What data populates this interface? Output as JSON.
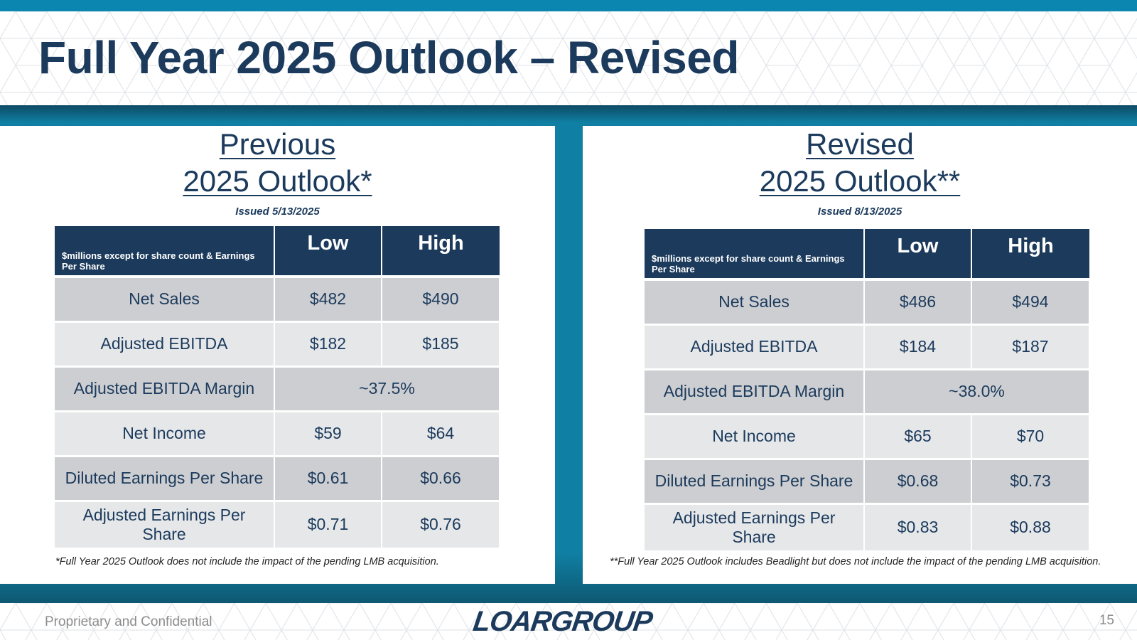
{
  "slide": {
    "title": "Full Year 2025 Outlook – Revised",
    "colors": {
      "navy": "#1b3a5c",
      "teal": "#0f7fa3",
      "row_dark": "#cdced1",
      "row_light": "#e6e7e9"
    }
  },
  "previous": {
    "heading_line1": "Previous",
    "heading_line2": "2025 Outlook*",
    "issued": "Issued 5/13/2025",
    "header_note": "$millions except for share count & Earnings Per Share",
    "col_low": "Low",
    "col_high": "High",
    "rows": [
      {
        "label": "Net Sales",
        "low": "$482",
        "high": "$490"
      },
      {
        "label": "Adjusted EBITDA",
        "low": "$182",
        "high": "$185"
      },
      {
        "label": "Adjusted EBITDA Margin",
        "merged": "~37.5%"
      },
      {
        "label": "Net Income",
        "low": "$59",
        "high": "$64"
      },
      {
        "label": "Diluted Earnings Per Share",
        "low": "$0.61",
        "high": "$0.66"
      },
      {
        "label": "Adjusted Earnings Per Share",
        "low": "$0.71",
        "high": "$0.76"
      }
    ],
    "footnote": "*Full Year 2025 Outlook does not include the impact of the pending LMB acquisition."
  },
  "revised": {
    "heading_line1": "Revised",
    "heading_line2": "2025 Outlook**",
    "issued": "Issued 8/13/2025",
    "header_note": "$millions except for share count & Earnings Per Share",
    "col_low": "Low",
    "col_high": "High",
    "rows": [
      {
        "label": "Net Sales",
        "low": "$486",
        "high": "$494"
      },
      {
        "label": "Adjusted EBITDA",
        "low": "$184",
        "high": "$187"
      },
      {
        "label": "Adjusted EBITDA Margin",
        "merged": "~38.0%"
      },
      {
        "label": "Net Income",
        "low": "$65",
        "high": "$70"
      },
      {
        "label": "Diluted Earnings Per Share",
        "low": "$0.68",
        "high": "$0.73"
      },
      {
        "label": "Adjusted Earnings Per Share",
        "low": "$0.83",
        "high": "$0.88"
      }
    ],
    "footnote": "**Full Year 2025 Outlook includes Beadlight but does not include the impact of the pending LMB acquisition."
  },
  "footer": {
    "confidential": "Proprietary and Confidential",
    "logo": "LOARGROUP",
    "page_number": "15"
  }
}
